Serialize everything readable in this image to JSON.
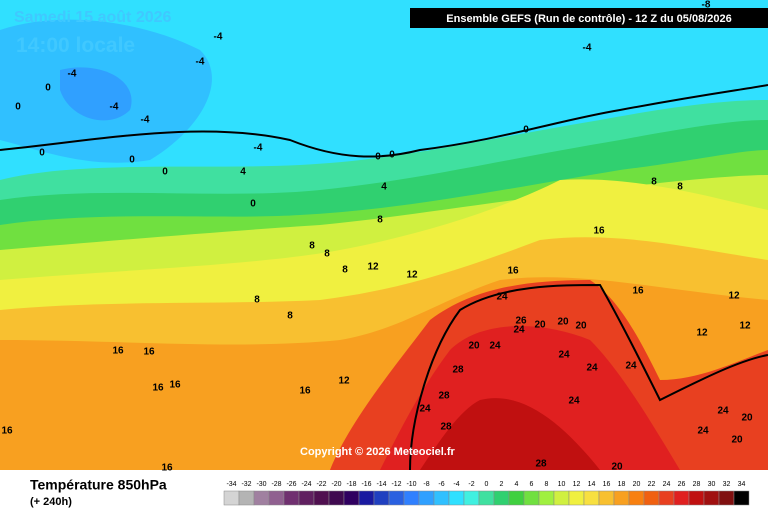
{
  "header": {
    "date": "Samedi 15 août 2026",
    "time": "14:00 locale",
    "model": "Ensemble GEFS (Run de contrôle)  -  12 Z du 05/08/2026"
  },
  "labels": [
    "-8",
    "-4",
    "-4",
    "-4",
    "-4",
    "-4",
    "-4",
    "0",
    "0",
    "0",
    "0",
    "0",
    "0",
    "0",
    "0",
    "0",
    "-4",
    "4",
    "4",
    "8",
    "8",
    "8",
    "8",
    "12",
    "12",
    "8",
    "8",
    "16",
    "16",
    "16",
    "8",
    "8",
    "12",
    "12",
    "12",
    "24",
    "24",
    "26",
    "20",
    "20",
    "20",
    "20",
    "24",
    "24",
    "24",
    "24",
    "28",
    "28",
    "24",
    "24",
    "28",
    "24",
    "20",
    "24",
    "20",
    "16",
    "16",
    "16",
    "16",
    "16",
    "12",
    "16",
    "16",
    "28",
    "20"
  ],
  "copyright": "Copyright © 2026 Meteociel.fr",
  "legend": {
    "title": "Température 850hPa",
    "lead": "(+ 240h)",
    "ticks": [
      -34,
      -32,
      -30,
      -28,
      -26,
      -24,
      -22,
      -20,
      -18,
      -16,
      -14,
      -12,
      -10,
      -8,
      -6,
      -4,
      -2,
      0,
      2,
      4,
      6,
      8,
      10,
      12,
      14,
      16,
      18,
      20,
      22,
      24,
      26,
      28,
      30,
      32,
      34
    ],
    "colors": [
      "#d4d4d4",
      "#b4b4b4",
      "#a080a0",
      "#906090",
      "#703070",
      "#602060",
      "#501050",
      "#400a50",
      "#300060",
      "#1a1aa0",
      "#2040c0",
      "#2a60e0",
      "#3080ff",
      "#30a0ff",
      "#30c0ff",
      "#30e0ff",
      "#40f0e0",
      "#40e0a0",
      "#30d070",
      "#40d040",
      "#70e040",
      "#a0f040",
      "#d0f040",
      "#f0f040",
      "#f8e040",
      "#f8c030",
      "#f8a020",
      "#f88010",
      "#f06010",
      "#e84020",
      "#e02020",
      "#c01010",
      "#a01010",
      "#801010",
      "#000000"
    ]
  }
}
